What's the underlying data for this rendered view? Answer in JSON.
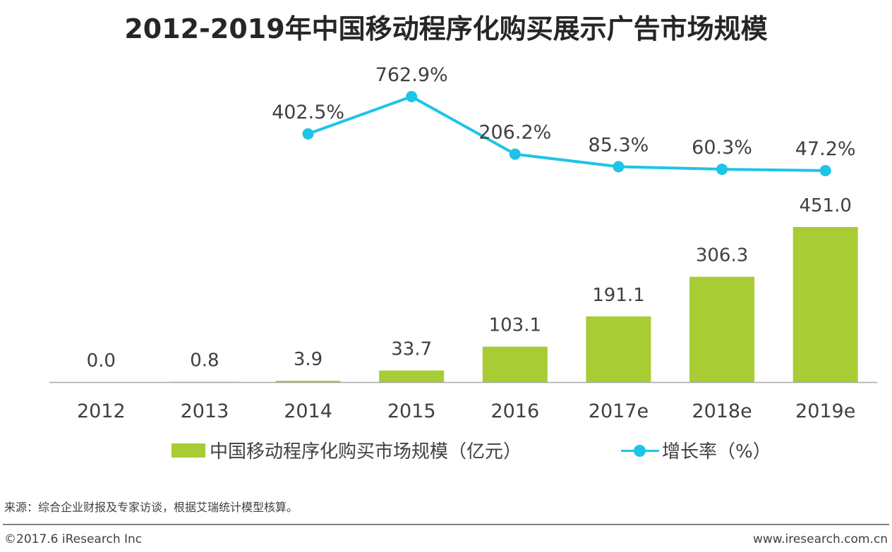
{
  "title": "2012-2019年中国移动程序化购买展示广告市场规模",
  "chart_data": {
    "type": "bar",
    "title": "2012-2019年中国移动程序化购买展示广告市场规模",
    "categories": [
      "2012",
      "2013",
      "2014",
      "2015",
      "2016",
      "2017e",
      "2018e",
      "2019e"
    ],
    "series": [
      {
        "name": "中国移动程序化购买市场规模（亿元）",
        "type": "bar",
        "values": [
          0.0,
          0.8,
          3.9,
          33.7,
          103.1,
          191.1,
          306.3,
          451.0
        ],
        "labels": [
          "0.0",
          "0.8",
          "3.9",
          "33.7",
          "103.1",
          "191.1",
          "306.3",
          "451.0"
        ],
        "color": "#A8CC34"
      },
      {
        "name": "增长率（%）",
        "type": "line",
        "values": [
          null,
          null,
          402.5,
          762.9,
          206.2,
          85.3,
          60.3,
          47.2
        ],
        "labels": [
          "",
          "",
          "402.5%",
          "762.9%",
          "206.2%",
          "85.3%",
          "60.3%",
          "47.2%"
        ],
        "color": "#1EC4E8"
      }
    ],
    "xlabel": "",
    "ylabel": "",
    "grid": false,
    "legend_position": "bottom"
  },
  "legend": {
    "bar_label": "中国移动程序化购买市场规模（亿元）",
    "line_label": "增长率（%）"
  },
  "footer": {
    "source": "来源：综合企业财报及专家访谈，根据艾瑞统计模型核算。",
    "copyright": "©2017.6 iResearch Inc",
    "website": "www.iresearch.com.cn"
  }
}
